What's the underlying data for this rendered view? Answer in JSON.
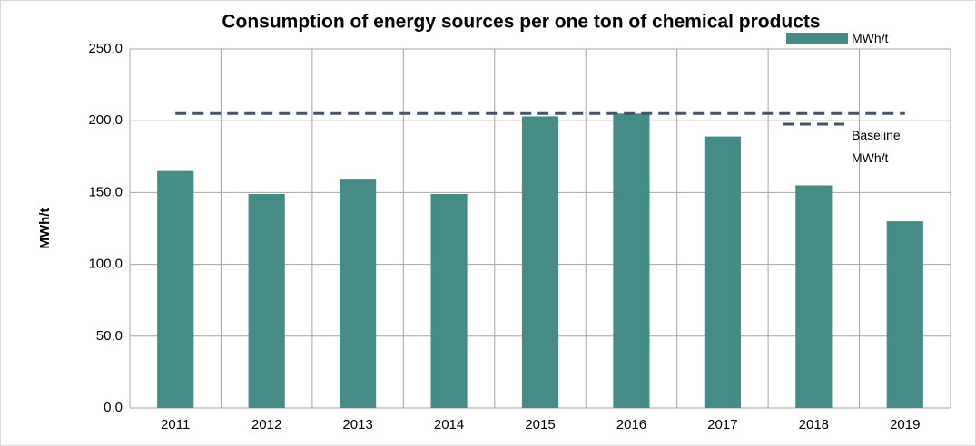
{
  "chart_data": {
    "type": "bar",
    "title": "Consumption of energy sources per one ton of chemical products",
    "y_label": "MWh/t",
    "categories": [
      "2011",
      "2012",
      "2013",
      "2014",
      "2015",
      "2016",
      "2017",
      "2018",
      "2019"
    ],
    "series": [
      {
        "name": "MWh/t",
        "color": "#468c86",
        "type": "bar",
        "values": [
          165,
          149,
          159,
          149,
          203,
          205,
          189,
          155,
          130
        ]
      },
      {
        "name": "Baseline MWh/t",
        "color": "#44546a",
        "type": "line",
        "dashed": true,
        "values": [
          205,
          205,
          205,
          205,
          205,
          205,
          205,
          205,
          205
        ]
      }
    ],
    "ylim": [
      0,
      250
    ],
    "yticks": [
      {
        "value": 0,
        "label": "0,0"
      },
      {
        "value": 50,
        "label": "50,0"
      },
      {
        "value": 100,
        "label": "100,0"
      },
      {
        "value": 150,
        "label": "150,0"
      },
      {
        "value": 200,
        "label": "200,0"
      },
      {
        "value": 250,
        "label": "250,0"
      }
    ],
    "grid": true,
    "legend": "top-right"
  }
}
